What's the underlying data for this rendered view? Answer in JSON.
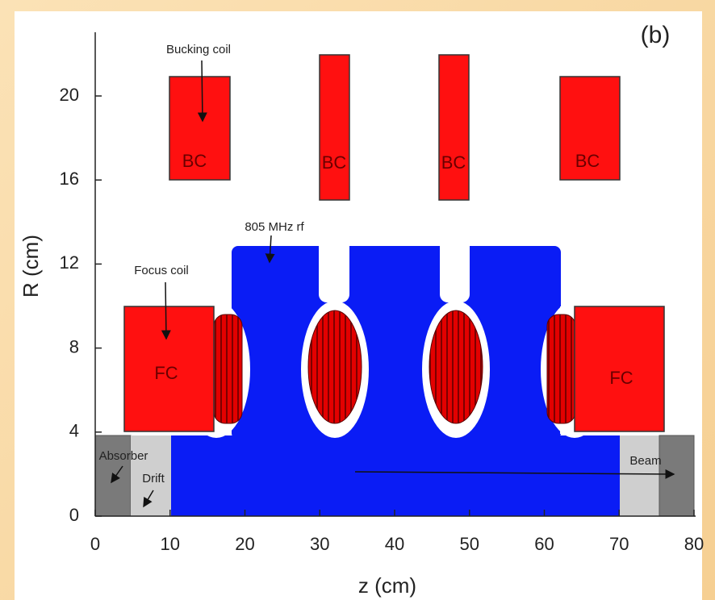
{
  "panel_label": "(b)",
  "axes": {
    "x": {
      "label": "z (cm)",
      "lim": [
        0,
        80
      ],
      "ticks": [
        0,
        10,
        20,
        30,
        40,
        50,
        60,
        70,
        80
      ]
    },
    "y": {
      "label": "R (cm)",
      "lim": [
        0,
        20
      ],
      "ticks": [
        0,
        4,
        8,
        12,
        16,
        20
      ]
    }
  },
  "annotations": {
    "bucking_coil": "Bucking coil",
    "rf": "805 MHz rf",
    "focus_coil": "Focus coil",
    "bc": [
      "BC",
      "BC",
      "BC",
      "BC"
    ],
    "fc": [
      "FC",
      "FC"
    ],
    "absorber": "Absorber",
    "drift": "Drift",
    "beam": "Beam"
  }
}
